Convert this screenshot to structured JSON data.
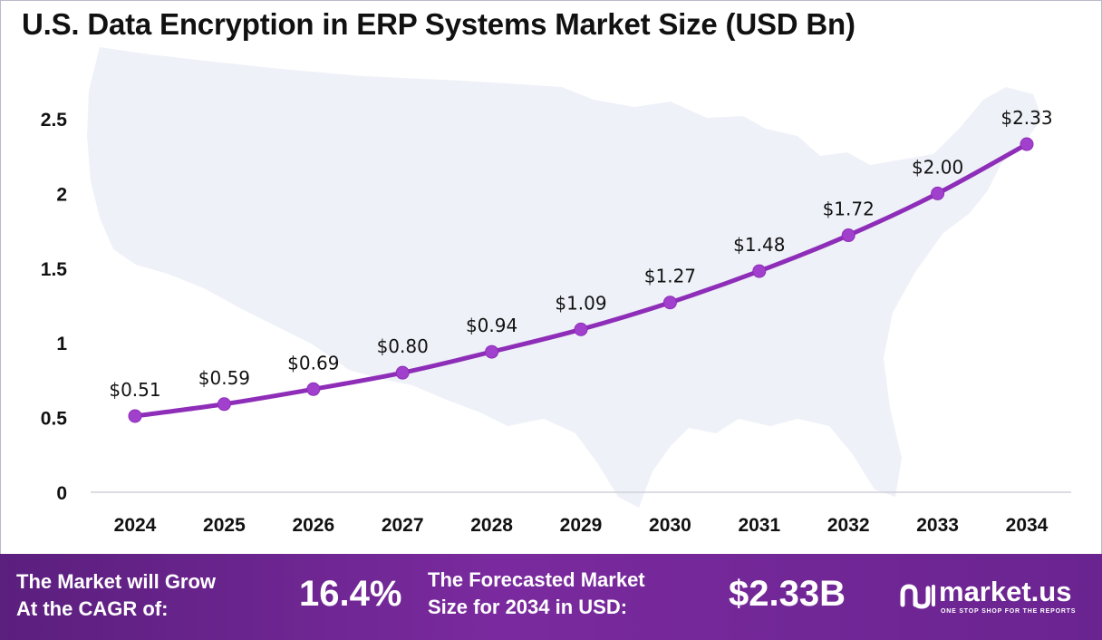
{
  "chart_data": {
    "type": "line",
    "title": "U.S. Data Encryption in ERP Systems Market Size (USD Bn)",
    "categories": [
      "2024",
      "2025",
      "2026",
      "2027",
      "2028",
      "2029",
      "2030",
      "2031",
      "2032",
      "2033",
      "2034"
    ],
    "values": [
      0.51,
      0.59,
      0.69,
      0.8,
      0.94,
      1.09,
      1.27,
      1.48,
      1.72,
      2.0,
      2.33
    ],
    "data_labels": [
      "$0.51",
      "$0.59",
      "$0.69",
      "$0.80",
      "$0.94",
      "$1.09",
      "$1.27",
      "$1.48",
      "$1.72",
      "$2.00",
      "$2.33"
    ],
    "y_ticks": [
      0,
      0.5,
      1,
      1.5,
      2,
      2.5
    ],
    "y_tick_labels": [
      "0",
      "0.5",
      "1",
      "1.5",
      "2",
      "2.5"
    ],
    "ylim": [
      0,
      2.6
    ],
    "grid": false,
    "legend": "none",
    "xlabel": "",
    "ylabel": "",
    "line_color": "#8e2db8",
    "marker_color": "#a040cc"
  },
  "footer": {
    "cagr_label_line1": "The Market will Grow",
    "cagr_label_line2": "At the CAGR of:",
    "cagr_value": "16.4%",
    "forecast_label_line1": "The Forecasted Market",
    "forecast_label_line2": "Size for 2034 in USD:",
    "forecast_value": "$2.33B",
    "background_color": "#6a2490"
  },
  "brand": {
    "name": "market.us",
    "tagline": "ONE STOP SHOP FOR THE REPORTS",
    "icon": "market-us-logo-icon"
  }
}
